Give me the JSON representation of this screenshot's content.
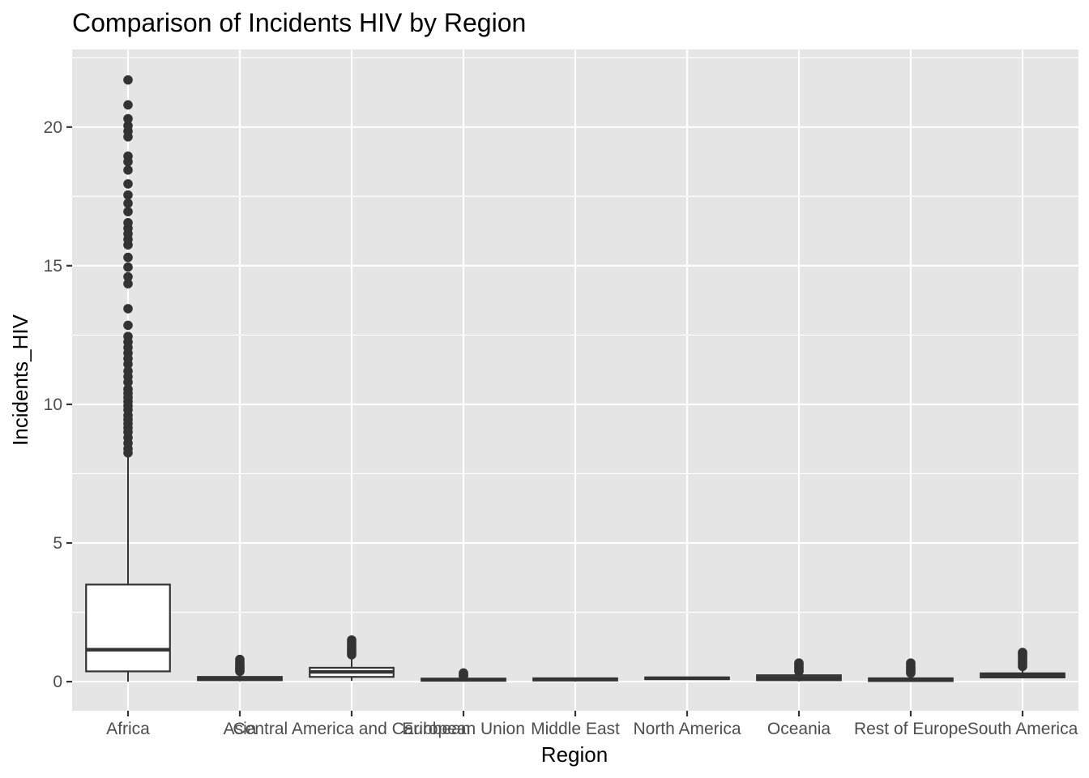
{
  "chart_data": {
    "type": "box",
    "title": "Comparison of Incidents HIV by Region",
    "xlabel": "Region",
    "ylabel": "Incidents_HIV",
    "ylim": [
      -1.05,
      22.8
    ],
    "yticks": [
      0,
      5,
      10,
      15,
      20
    ],
    "ytick_labels": [
      "0",
      "5",
      "10",
      "15",
      "20"
    ],
    "grid": true,
    "categories": [
      "Africa",
      "Asia",
      "Central America and Caribbean",
      "European Union",
      "Middle East",
      "North America",
      "Oceania",
      "Rest of Europe",
      "South America"
    ],
    "boxes": [
      {
        "region": "Africa",
        "min": 0.0,
        "q1": 0.37,
        "median": 1.15,
        "q3": 3.5,
        "max": 8.2,
        "outliers": [
          8.25,
          8.4,
          8.6,
          8.8,
          9.0,
          9.15,
          9.3,
          9.45,
          9.6,
          9.8,
          9.95,
          10.1,
          10.25,
          10.4,
          10.55,
          10.8,
          11.0,
          11.2,
          11.45,
          11.65,
          11.85,
          12.05,
          12.25,
          12.45,
          12.85,
          13.45,
          14.35,
          14.6,
          14.95,
          15.3,
          15.75,
          15.95,
          16.15,
          16.35,
          16.55,
          16.95,
          17.25,
          17.55,
          17.95,
          18.45,
          18.75,
          18.95,
          19.65,
          19.85,
          20.05,
          20.3,
          20.8,
          21.7
        ]
      },
      {
        "region": "Asia",
        "min": 0.01,
        "q1": 0.05,
        "median": 0.12,
        "q3": 0.17,
        "max": 0.32,
        "outliers": [
          0.37,
          0.42,
          0.47,
          0.52,
          0.58,
          0.65,
          0.72,
          0.8
        ]
      },
      {
        "region": "Central America and Caribbean",
        "min": 0.03,
        "q1": 0.17,
        "median": 0.35,
        "q3": 0.5,
        "max": 0.92,
        "outliers": [
          0.97,
          1.03,
          1.1,
          1.18,
          1.25,
          1.33,
          1.42,
          1.5
        ]
      },
      {
        "region": "European Union",
        "min": 0.005,
        "q1": 0.03,
        "median": 0.07,
        "q3": 0.11,
        "max": 0.17,
        "outliers": [
          0.2,
          0.23,
          0.27,
          0.31
        ]
      },
      {
        "region": "Middle East",
        "min": 0.005,
        "q1": 0.04,
        "median": 0.08,
        "q3": 0.12,
        "max": 0.14,
        "outliers": []
      },
      {
        "region": "North America",
        "min": 0.07,
        "q1": 0.09,
        "median": 0.12,
        "q3": 0.15,
        "max": 0.18,
        "outliers": []
      },
      {
        "region": "Oceania",
        "min": 0.01,
        "q1": 0.05,
        "median": 0.14,
        "q3": 0.23,
        "max": 0.33,
        "outliers": [
          0.37,
          0.42,
          0.48,
          0.55,
          0.62,
          0.67
        ]
      },
      {
        "region": "Rest of Europe",
        "min": 0.005,
        "q1": 0.02,
        "median": 0.06,
        "q3": 0.12,
        "max": 0.28,
        "outliers": [
          0.31,
          0.36,
          0.41,
          0.47,
          0.53,
          0.6,
          0.67
        ]
      },
      {
        "region": "South America",
        "min": 0.12,
        "q1": 0.15,
        "median": 0.22,
        "q3": 0.3,
        "max": 0.48,
        "outliers": [
          0.55,
          0.62,
          0.7,
          0.78,
          0.86,
          0.93,
          1.0,
          1.05
        ]
      }
    ],
    "colors": {
      "panel_background": "#e5e5e5",
      "grid": "#ffffff",
      "box_fill": "#ffffff",
      "box_line": "#333333",
      "outlier": "#333333"
    }
  }
}
